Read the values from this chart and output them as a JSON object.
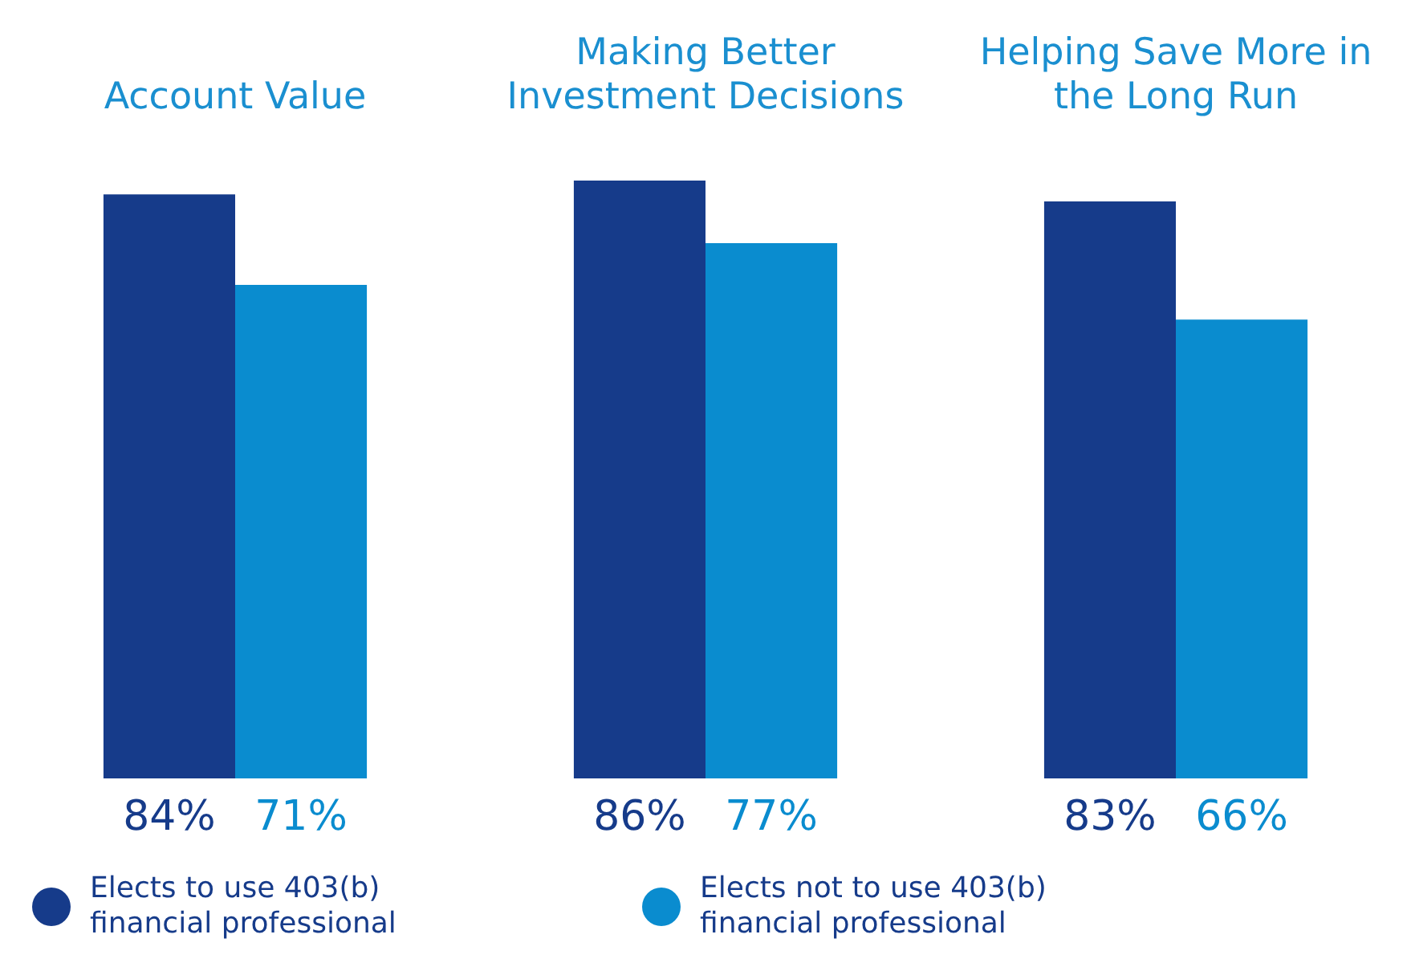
{
  "chart_data": {
    "type": "bar",
    "categories": [
      "Account Value",
      "Making Better Investment Decisions",
      "Helping Save More in the Long Run"
    ],
    "series": [
      {
        "name": "Elects to use 403(b) financial professional",
        "color": "#163b8a",
        "values": [
          84,
          86,
          83
        ],
        "value_labels": [
          "84%",
          "86%",
          "83%"
        ]
      },
      {
        "name": "Elects not to use 403(b) financial professional",
        "color": "#0a8ccf",
        "values": [
          71,
          77,
          66
        ],
        "value_labels": [
          "71%",
          "77%",
          "66%"
        ]
      }
    ],
    "legend": "bottom",
    "grid": false
  }
}
